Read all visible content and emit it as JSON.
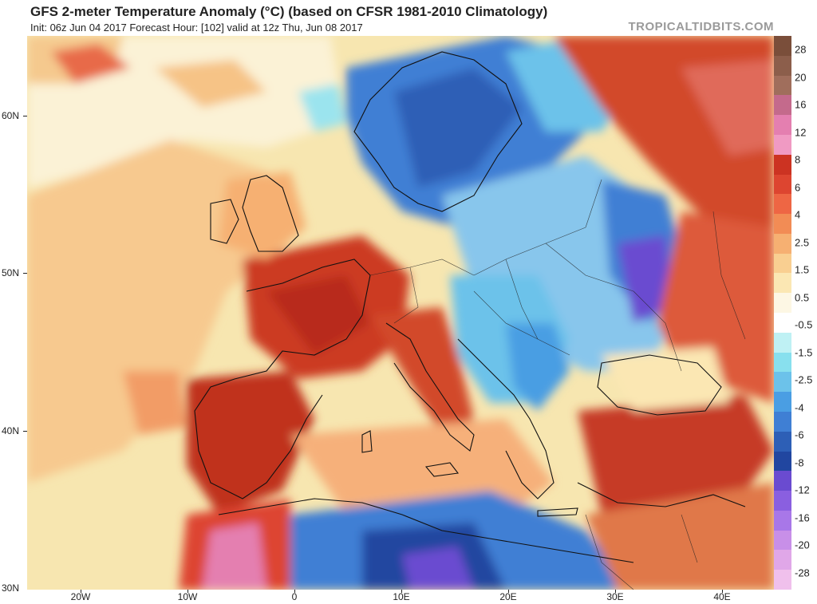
{
  "header": {
    "title": "GFS 2-meter Temperature Anomaly (°C) (based on CFSR 1981-2010 Climatology)",
    "subtitle": "Init: 06z Jun 04 2017   Forecast Hour: [102]   valid at 12z Thu, Jun 08 2017",
    "brand": "TROPICALTIDBITS.COM"
  },
  "axes": {
    "lat_labels": [
      "60N",
      "50N",
      "40N",
      "30N"
    ],
    "lon_labels": [
      "20W",
      "10W",
      "0",
      "10E",
      "20E",
      "30E",
      "40E"
    ]
  },
  "colorbar": {
    "labels": [
      "28",
      "20",
      "16",
      "12",
      "8",
      "6",
      "4",
      "2.5",
      "1.5",
      "0.5",
      "-0.5",
      "-1.5",
      "-2.5",
      "-4",
      "-6",
      "-8",
      "-12",
      "-16",
      "-20",
      "-28"
    ],
    "colors": [
      "#7a4e3a",
      "#8c5e4b",
      "#a06e5c",
      "#c46a8c",
      "#e47fb0",
      "#f09ac3",
      "#cc3322",
      "#dd4530",
      "#ee6644",
      "#f28c55",
      "#f6b072",
      "#f9cf91",
      "#fbe7b3",
      "#fdf7e4",
      "#ffffff",
      "#bff1f4",
      "#88e0ee",
      "#6cc2ea",
      "#4a9ee3",
      "#3f7fd4",
      "#2d5fb6",
      "#2146a0",
      "#6a4bd0",
      "#8a5fe0",
      "#a877e8",
      "#c88fe8",
      "#e0a7e8",
      "#f0c0ec"
    ]
  },
  "map": {
    "description_colors": {
      "ocean_neutral": "#f6e3a9",
      "warm_anomaly": "#d24a2c",
      "cold_anomaly": "#3f7fd4"
    }
  }
}
